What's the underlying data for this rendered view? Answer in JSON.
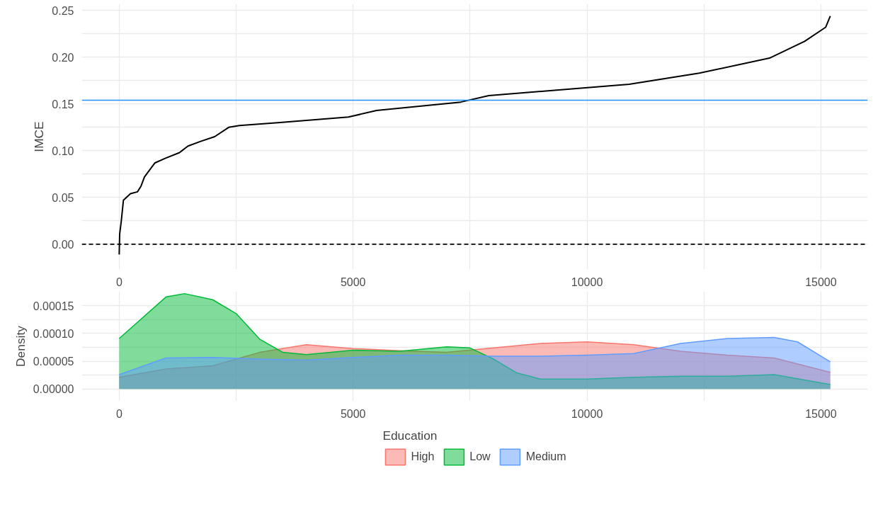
{
  "chart_data": [
    {
      "type": "line",
      "ylabel": "IMCE",
      "color": "#000000",
      "line_style": "solid",
      "grid": true,
      "x": [
        0,
        10,
        45,
        90,
        240,
        390,
        465,
        540,
        660,
        765,
        990,
        1290,
        1470,
        1740,
        2040,
        2340,
        2570,
        3390,
        4900,
        5500,
        7300,
        7900,
        9400,
        10900,
        12400,
        13900,
        14650,
        15100,
        15200
      ],
      "values": [
        -0.011,
        0.011,
        0.025,
        0.047,
        0.054,
        0.056,
        0.062,
        0.072,
        0.08,
        0.087,
        0.092,
        0.098,
        0.105,
        0.11,
        0.115,
        0.125,
        0.127,
        0.13,
        0.136,
        0.143,
        0.152,
        0.159,
        0.165,
        0.171,
        0.183,
        0.199,
        0.217,
        0.232,
        0.244
      ],
      "xlim": [
        -800,
        16000
      ],
      "xticks": [
        0,
        {
          "value": 2500,
          "label": null
        },
        5000,
        {
          "value": 7500,
          "label": null
        },
        10000,
        {
          "value": 12500,
          "label": null
        },
        15000
      ],
      "ylim": [
        -0.027,
        0.257
      ],
      "yticks": [
        {
          "value": 0,
          "label": "0.00"
        },
        {
          "value": 0.025,
          "label": null
        },
        {
          "value": 0.05,
          "label": "0.05"
        },
        {
          "value": 0.075,
          "label": null
        },
        {
          "value": 0.1,
          "label": "0.10"
        },
        {
          "value": 0.125,
          "label": null
        },
        {
          "value": 0.15,
          "label": "0.15"
        },
        {
          "value": 0.175,
          "label": null
        },
        {
          "value": 0.2,
          "label": "0.20"
        },
        {
          "value": 0.225,
          "label": null
        },
        {
          "value": 0.25,
          "label": "0.25"
        }
      ],
      "ref_lines": [
        {
          "axis": "y",
          "value": 0,
          "color": "#000000",
          "line_style": "dashed"
        },
        {
          "axis": "y",
          "value": 0.154,
          "color": "#1e90ff",
          "line_style": "solid"
        }
      ]
    },
    {
      "type": "area",
      "ylabel": "Density",
      "legend": "bottom",
      "legend_title": "Education",
      "grid": true,
      "x": [
        0,
        1000,
        2000,
        3000,
        4000,
        5000,
        6000,
        7000,
        8000,
        9000,
        10000,
        11000,
        12000,
        13000,
        14000,
        15200
      ],
      "series": [
        {
          "name": "High",
          "color": "#f8766d",
          "values": [
            2.1e-05,
            3.6e-05,
            4.2e-05,
            6.6e-05,
            8e-05,
            7.3e-05,
            6.9e-05,
            6.6e-05,
            7.4e-05,
            8.2e-05,
            8.5e-05,
            8e-05,
            6.8e-05,
            6.1e-05,
            5.6e-05,
            3e-05
          ]
        },
        {
          "name": "Low",
          "color": "#00ba38",
          "x": [
            0,
            1000,
            1400,
            2000,
            2500,
            3000,
            3500,
            4000,
            5000,
            6000,
            7000,
            7500,
            8000,
            8500,
            9000,
            10000,
            11000,
            12000,
            13000,
            14000,
            15200
          ],
          "values": [
            9.1e-05,
            0.000166,
            0.000172,
            0.000161,
            0.000136,
            9e-05,
            6.6e-05,
            6.2e-05,
            7e-05,
            6.8e-05,
            7.6e-05,
            7.4e-05,
            5.4e-05,
            2.9e-05,
            1.8e-05,
            1.8e-05,
            2.1e-05,
            2.3e-05,
            2.3e-05,
            2.6e-05,
            8e-06
          ]
        },
        {
          "name": "Medium",
          "color": "#619cff",
          "x": [
            0,
            1000,
            2000,
            3000,
            4000,
            5000,
            6000,
            7000,
            8000,
            9000,
            10000,
            11000,
            12000,
            13000,
            14000,
            14500,
            15200
          ],
          "values": [
            2.6e-05,
            5.6e-05,
            5.7e-05,
            5.4e-05,
            5.2e-05,
            5.7e-05,
            6.1e-05,
            6.1e-05,
            5.9e-05,
            5.9e-05,
            6.1e-05,
            6.4e-05,
            8.2e-05,
            9.1e-05,
            9.3e-05,
            8.5e-05,
            4.9e-05
          ]
        }
      ],
      "xlim": [
        -800,
        16000
      ],
      "xticks": [
        0,
        {
          "value": 2500,
          "label": null
        },
        5000,
        {
          "value": 7500,
          "label": null
        },
        10000,
        {
          "value": 12500,
          "label": null
        },
        15000
      ],
      "ylim": [
        -2.2e-05,
        0.000176
      ],
      "yticks": [
        {
          "value": 0,
          "label": "0.00000"
        },
        {
          "value": 2.5e-05,
          "label": null
        },
        {
          "value": 5e-05,
          "label": "0.00005"
        },
        {
          "value": 7.5e-05,
          "label": null
        },
        {
          "value": 0.0001,
          "label": "0.00010"
        },
        {
          "value": 0.000125,
          "label": null
        },
        {
          "value": 0.00015,
          "label": "0.00015"
        }
      ]
    }
  ]
}
